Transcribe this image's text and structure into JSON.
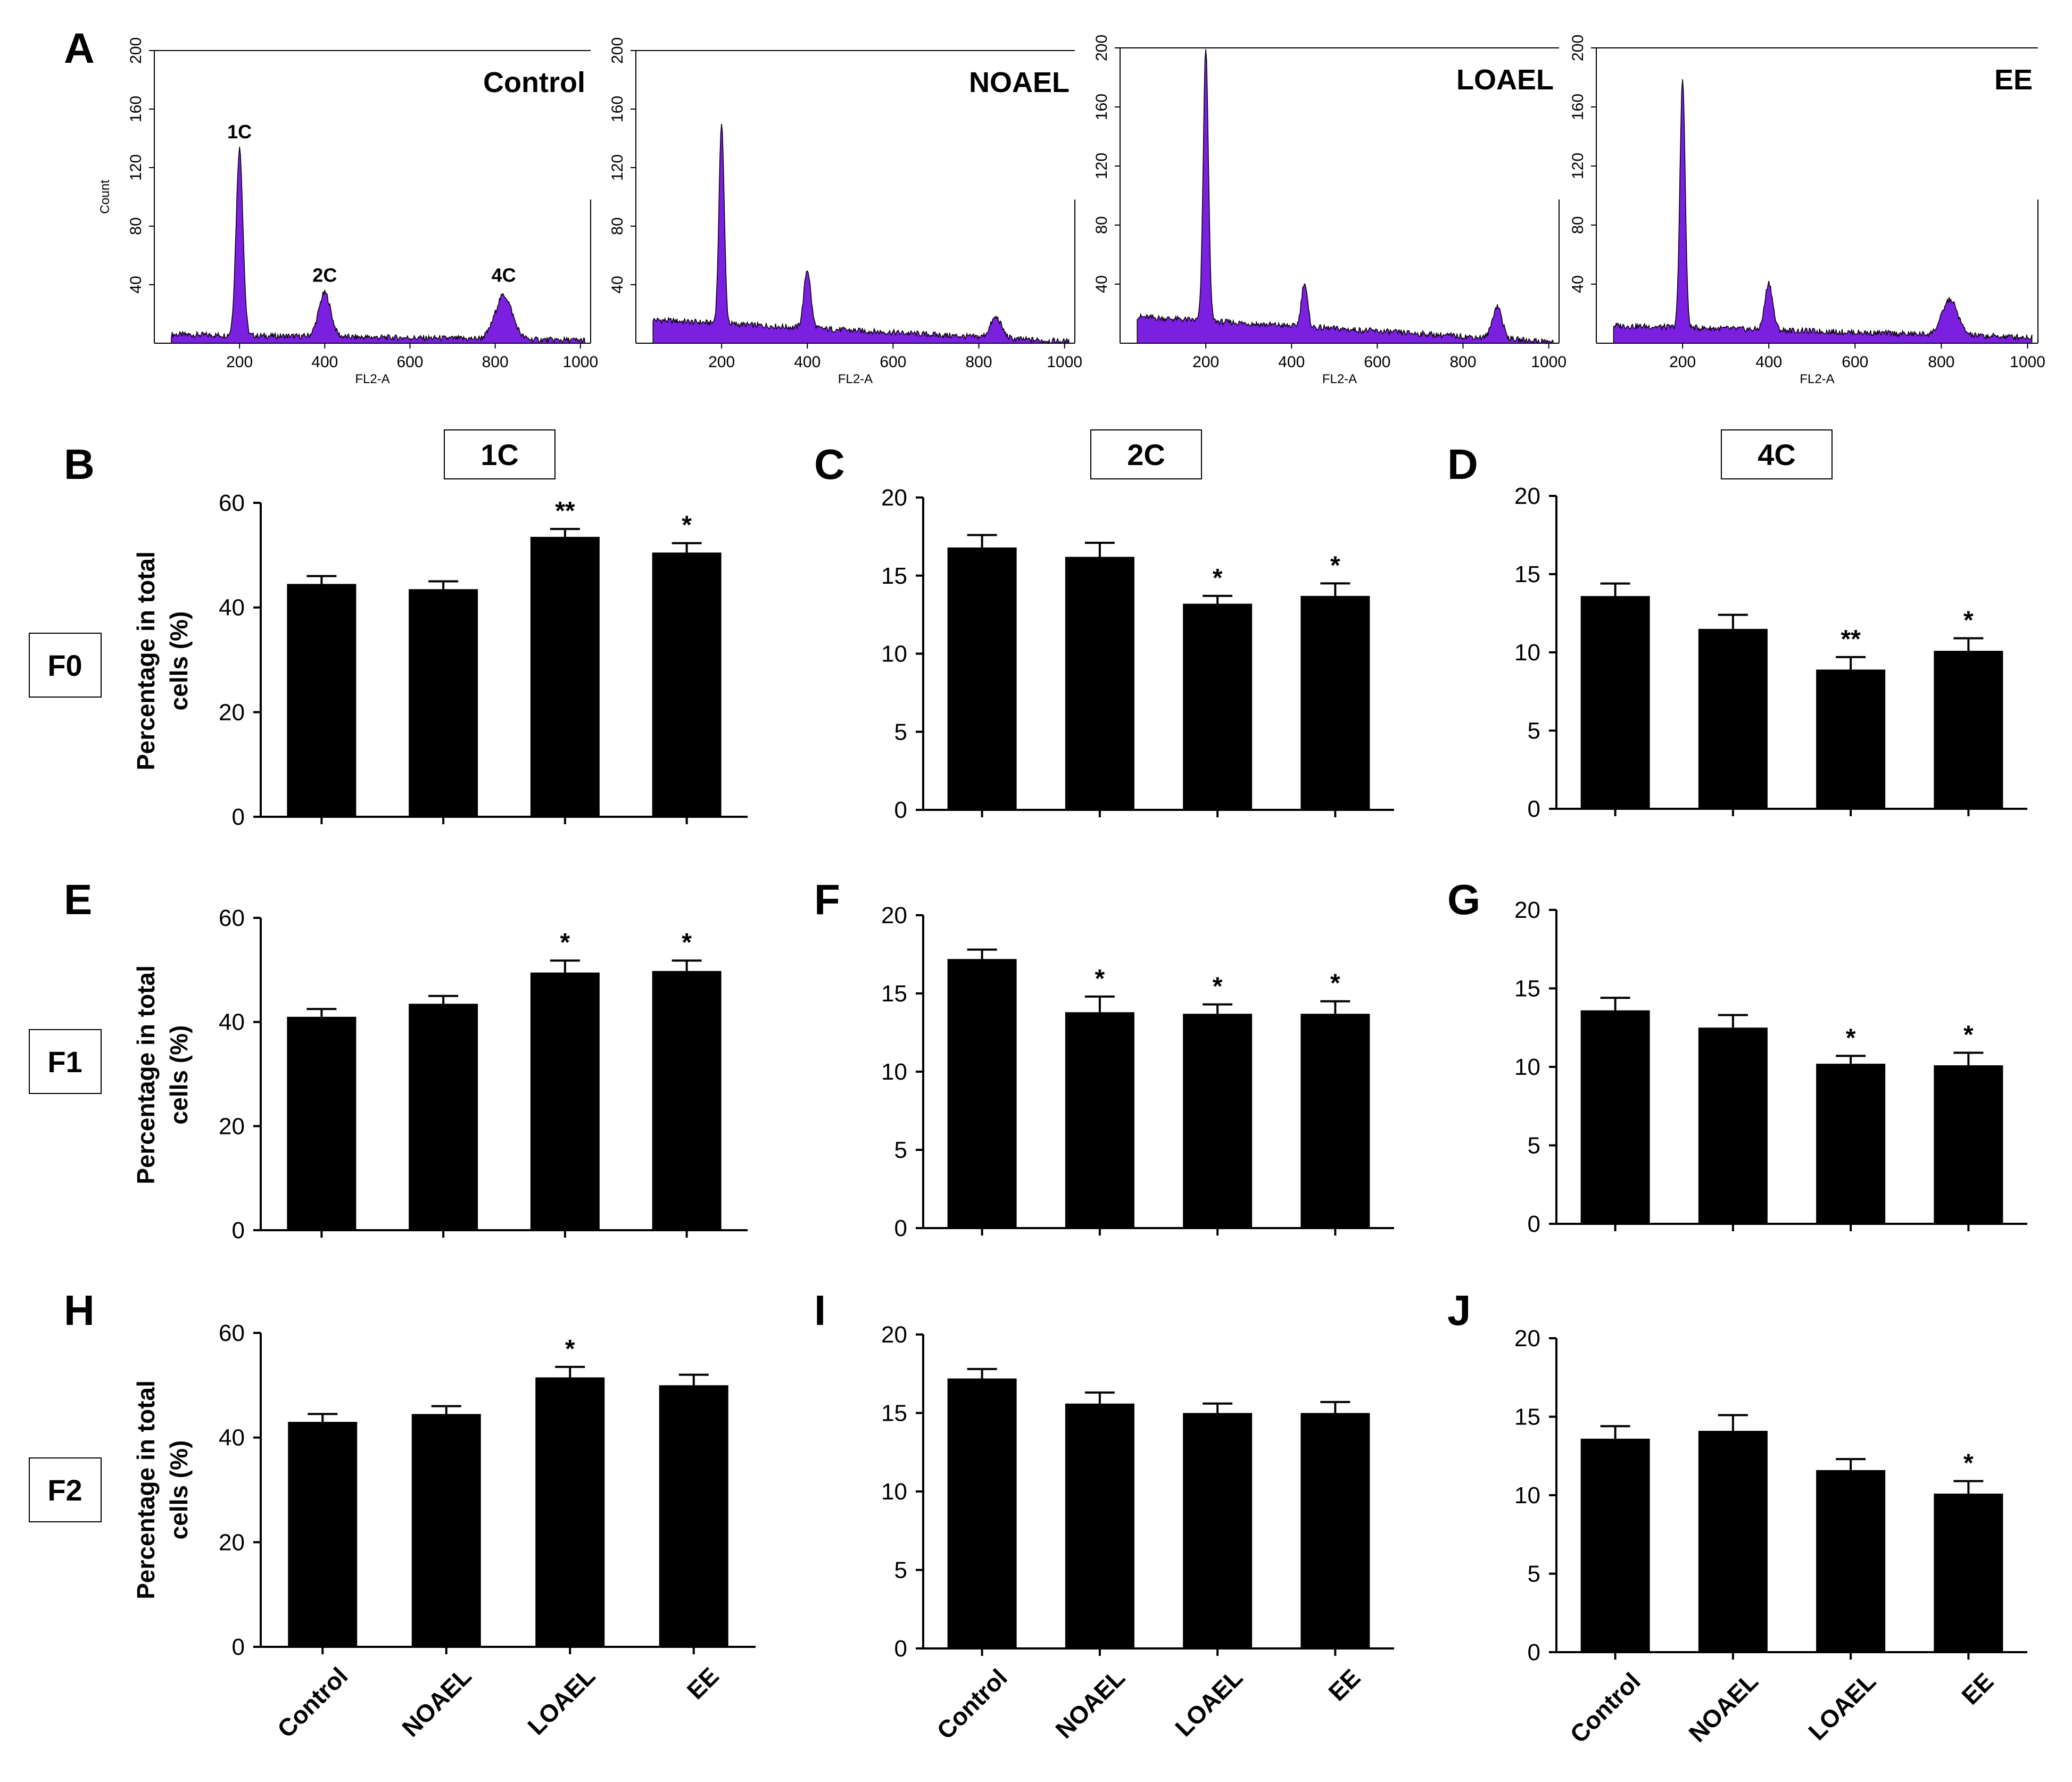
{
  "panel_letters": [
    "A",
    "B",
    "C",
    "D",
    "E",
    "F",
    "G",
    "H",
    "I",
    "J"
  ],
  "histograms": {
    "x_axis_label": "FL2-A",
    "y_axis_label": "Count",
    "x_ticks": [
      200,
      400,
      600,
      800,
      1000
    ],
    "y_ticks": [
      40,
      80,
      120,
      160,
      200
    ],
    "x_range": [
      0,
      1024
    ],
    "y_range": [
      0,
      200
    ],
    "fill_color": "#7b1fe0",
    "peak_labels": [
      "1C",
      "2C",
      "4C"
    ],
    "panels": [
      {
        "title": "Control",
        "peaks": [
          {
            "x": 200,
            "height": 128,
            "width": 16
          },
          {
            "x": 400,
            "height": 30,
            "width": 28
          },
          {
            "x": 820,
            "height": 30,
            "width": 40
          }
        ],
        "baseline": 6,
        "baseline_end": 2
      },
      {
        "title": "NOAEL",
        "peaks": [
          {
            "x": 200,
            "height": 138,
            "width": 12
          },
          {
            "x": 400,
            "height": 40,
            "width": 16
          },
          {
            "x": 840,
            "height": 14,
            "width": 26
          }
        ],
        "baseline": 16,
        "baseline_end": 1
      },
      {
        "title": "LOAEL",
        "peaks": [
          {
            "x": 200,
            "height": 185,
            "width": 12
          },
          {
            "x": 430,
            "height": 30,
            "width": 14
          },
          {
            "x": 880,
            "height": 22,
            "width": 22
          }
        ],
        "baseline": 18,
        "baseline_end": 1
      },
      {
        "title": "EE",
        "peaks": [
          {
            "x": 200,
            "height": 170,
            "width": 12
          },
          {
            "x": 400,
            "height": 32,
            "width": 18
          },
          {
            "x": 820,
            "height": 24,
            "width": 36
          }
        ],
        "baseline": 12,
        "baseline_end": 4
      }
    ]
  },
  "column_headers": [
    "1C",
    "2C",
    "4C"
  ],
  "row_labels": [
    "F0",
    "F1",
    "F2"
  ],
  "y_axis_label_line1": "Percentage in total",
  "y_axis_label_line2": "cells (%)",
  "chart_data": [
    {
      "id": "B",
      "type": "bar",
      "title": "",
      "categories": [
        "Control",
        "NOAEL",
        "LOAEL",
        "EE"
      ],
      "values": [
        44.5,
        43.5,
        53.5,
        50.5
      ],
      "errors": [
        1.5,
        1.5,
        1.5,
        1.8
      ],
      "significance": [
        "",
        "",
        "**",
        "*"
      ],
      "ylim": [
        0,
        60
      ],
      "yticks": [
        0,
        20,
        40,
        60
      ],
      "xlabel": "",
      "ylabel": "Percentage in total cells (%)"
    },
    {
      "id": "C",
      "type": "bar",
      "title": "",
      "categories": [
        "Control",
        "NOAEL",
        "LOAEL",
        "EE"
      ],
      "values": [
        16.8,
        16.2,
        13.2,
        13.7
      ],
      "errors": [
        0.8,
        0.9,
        0.5,
        0.8
      ],
      "significance": [
        "",
        "",
        "*",
        "*"
      ],
      "ylim": [
        0,
        20
      ],
      "yticks": [
        0,
        5,
        10,
        15,
        20
      ],
      "xlabel": "",
      "ylabel": ""
    },
    {
      "id": "D",
      "type": "bar",
      "title": "",
      "categories": [
        "Control",
        "NOAEL",
        "LOAEL",
        "EE"
      ],
      "values": [
        13.6,
        11.5,
        8.9,
        10.1
      ],
      "errors": [
        0.8,
        0.9,
        0.8,
        0.8
      ],
      "significance": [
        "",
        "",
        "**",
        "*"
      ],
      "ylim": [
        0,
        20
      ],
      "yticks": [
        0,
        5,
        10,
        15,
        20
      ],
      "xlabel": "",
      "ylabel": ""
    },
    {
      "id": "E",
      "type": "bar",
      "title": "",
      "categories": [
        "Control",
        "NOAEL",
        "LOAEL",
        "EE"
      ],
      "values": [
        41.0,
        43.5,
        49.5,
        49.8
      ],
      "errors": [
        1.5,
        1.5,
        2.3,
        2.0
      ],
      "significance": [
        "",
        "",
        "*",
        "*"
      ],
      "ylim": [
        0,
        60
      ],
      "yticks": [
        0,
        20,
        40,
        60
      ],
      "xlabel": "",
      "ylabel": "Percentage in total cells (%)"
    },
    {
      "id": "F",
      "type": "bar",
      "title": "",
      "categories": [
        "Control",
        "NOAEL",
        "LOAEL",
        "EE"
      ],
      "values": [
        17.2,
        13.8,
        13.7,
        13.7
      ],
      "errors": [
        0.6,
        1.0,
        0.6,
        0.8
      ],
      "significance": [
        "",
        "*",
        "*",
        "*"
      ],
      "ylim": [
        0,
        20
      ],
      "yticks": [
        0,
        5,
        10,
        15,
        20
      ],
      "xlabel": "",
      "ylabel": ""
    },
    {
      "id": "G",
      "type": "bar",
      "title": "",
      "categories": [
        "Control",
        "NOAEL",
        "LOAEL",
        "EE"
      ],
      "values": [
        13.6,
        12.5,
        10.2,
        10.1
      ],
      "errors": [
        0.8,
        0.8,
        0.5,
        0.8
      ],
      "significance": [
        "",
        "",
        "*",
        "*"
      ],
      "ylim": [
        0,
        20
      ],
      "yticks": [
        0,
        5,
        10,
        15,
        20
      ],
      "xlabel": "",
      "ylabel": ""
    },
    {
      "id": "H",
      "type": "bar",
      "title": "",
      "categories": [
        "Control",
        "NOAEL",
        "LOAEL",
        "EE"
      ],
      "values": [
        43.0,
        44.5,
        51.5,
        50.0
      ],
      "errors": [
        1.5,
        1.5,
        2.0,
        2.0
      ],
      "significance": [
        "",
        "",
        "*",
        ""
      ],
      "ylim": [
        0,
        60
      ],
      "yticks": [
        0,
        20,
        40,
        60
      ],
      "xlabel": "",
      "ylabel": "Percentage in total cells (%)"
    },
    {
      "id": "I",
      "type": "bar",
      "title": "",
      "categories": [
        "Control",
        "NOAEL",
        "LOAEL",
        "EE"
      ],
      "values": [
        17.2,
        15.6,
        15.0,
        15.0
      ],
      "errors": [
        0.6,
        0.7,
        0.6,
        0.7
      ],
      "significance": [
        "",
        "",
        "",
        ""
      ],
      "ylim": [
        0,
        20
      ],
      "yticks": [
        0,
        5,
        10,
        15,
        20
      ],
      "xlabel": "",
      "ylabel": ""
    },
    {
      "id": "J",
      "type": "bar",
      "title": "",
      "categories": [
        "Control",
        "NOAEL",
        "LOAEL",
        "EE"
      ],
      "values": [
        13.6,
        14.1,
        11.6,
        10.1
      ],
      "errors": [
        0.8,
        1.0,
        0.7,
        0.8
      ],
      "significance": [
        "",
        "",
        "",
        "*"
      ],
      "ylim": [
        0,
        20
      ],
      "yticks": [
        0,
        5,
        10,
        15,
        20
      ],
      "xlabel": "",
      "ylabel": ""
    }
  ]
}
